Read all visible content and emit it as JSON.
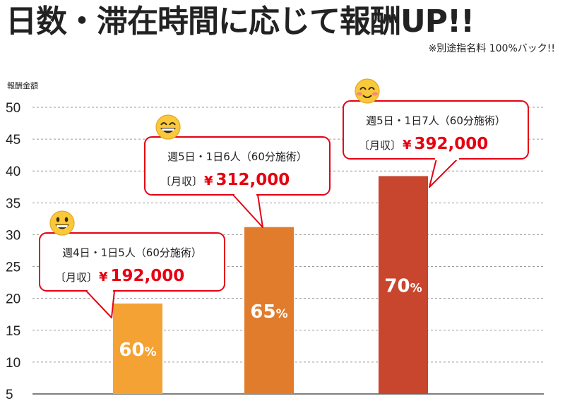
{
  "header": {
    "title": "日数・滞在時間に応じて報酬UP!!",
    "subtitle": "※別途指名料 100%バック!!"
  },
  "chart_data": {
    "type": "bar",
    "title": "日数・滞在時間に応じて報酬UP!!",
    "ylabel": "報酬金額",
    "xlabel": "",
    "ylim": [
      5,
      50
    ],
    "yticks": [
      5,
      10,
      15,
      20,
      25,
      30,
      35,
      40,
      45,
      50
    ],
    "grid": true,
    "values": [
      19.2,
      31.2,
      39.2
    ],
    "colors": [
      "#f5a234",
      "#e07c2c",
      "#c8452e"
    ],
    "bar_labels": [
      {
        "value": "60",
        "unit": "%"
      },
      {
        "value": "65",
        "unit": "%"
      },
      {
        "value": "70",
        "unit": "%"
      }
    ],
    "callouts": [
      {
        "schedule": "週4日・1日5人（60分施術）",
        "income_label": "〔月収〕",
        "currency": "¥",
        "amount": "192,000",
        "face": "grin-icon"
      },
      {
        "schedule": "週5日・1日6人（60分施術）",
        "income_label": "〔月収〕",
        "currency": "¥",
        "amount": "312,000",
        "face": "laughing-icon"
      },
      {
        "schedule": "週5日・1日7人（60分施術）",
        "income_label": "〔月収〕",
        "currency": "¥",
        "amount": "392,000",
        "face": "blush-smile-icon"
      }
    ]
  }
}
